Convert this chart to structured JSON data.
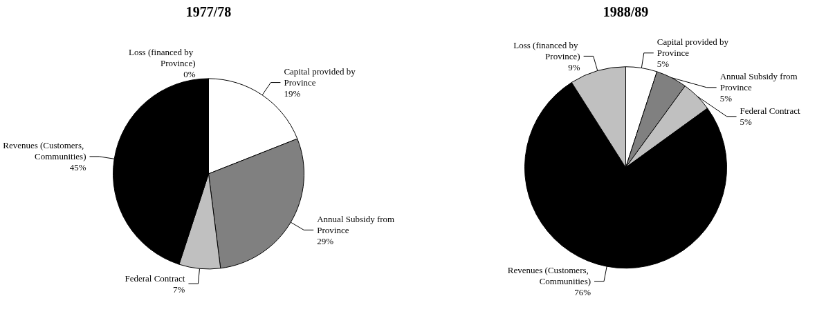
{
  "chart_data": [
    {
      "type": "pie",
      "title": "1977/78",
      "categories": [
        "Capital provided by Province",
        "Annual Subsidy from Province",
        "Federal Contract",
        "Revenues (Customers, Communities)",
        "Loss (financed by Province)"
      ],
      "values": [
        19,
        29,
        7,
        45,
        0
      ],
      "colors": [
        "#ffffff",
        "#808080",
        "#c0c0c0",
        "#000000",
        "#c0c0c0"
      ],
      "value_labels": [
        "19%",
        "29%",
        "7%",
        "45%",
        "0%"
      ]
    },
    {
      "type": "pie",
      "title": "1988/89",
      "categories": [
        "Capital provided by Province",
        "Annual Subsidy from Province",
        "Federal Contract",
        "Revenues (Customers, Communities)",
        "Loss (financed by Province)"
      ],
      "values": [
        5,
        5,
        5,
        76,
        9
      ],
      "colors": [
        "#ffffff",
        "#808080",
        "#c0c0c0",
        "#000000",
        "#c0c0c0"
      ],
      "value_labels": [
        "5%",
        "5%",
        "5%",
        "76%",
        "9%"
      ]
    }
  ]
}
